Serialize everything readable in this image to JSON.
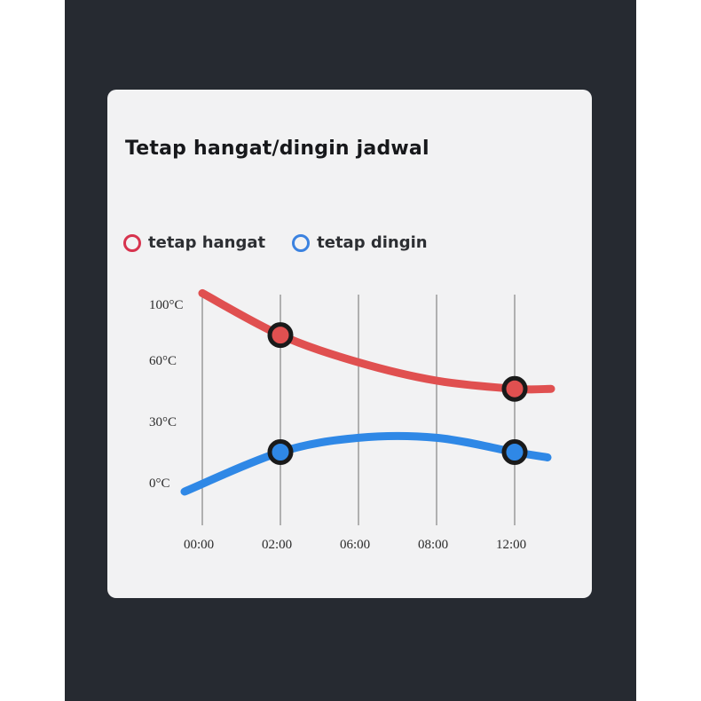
{
  "title": "Tetap hangat/dingin jadwal",
  "colors": {
    "warm": "#e05050",
    "warm_legend": "#d7334e",
    "cold": "#2f88e6",
    "cold_legend": "#3b82e0",
    "marker_ring": "#1a1a1a"
  },
  "legend": [
    {
      "label": "tetap hangat",
      "color": "#d7334e"
    },
    {
      "label": "tetap dingin",
      "color": "#3b82e0"
    }
  ],
  "chart_data": {
    "type": "line",
    "title": "",
    "xlabel": "",
    "ylabel": "",
    "categories": [
      "00:00",
      "02:00",
      "06:00",
      "08:00",
      "12:00"
    ],
    "yticks": [
      "100°C",
      "60°C",
      "30°C",
      "0°C"
    ],
    "grid": "vertical lines at each x category",
    "legend_position": "top-left",
    "series": [
      {
        "name": "tetap hangat",
        "color": "#e05050",
        "values": [
          108,
          78,
          59,
          50,
          46
        ],
        "markers": [
          1,
          4
        ]
      },
      {
        "name": "tetap dingin",
        "color": "#2f88e6",
        "values": [
          0,
          15,
          22,
          22,
          15
        ],
        "markers": [
          1,
          4
        ]
      }
    ]
  }
}
